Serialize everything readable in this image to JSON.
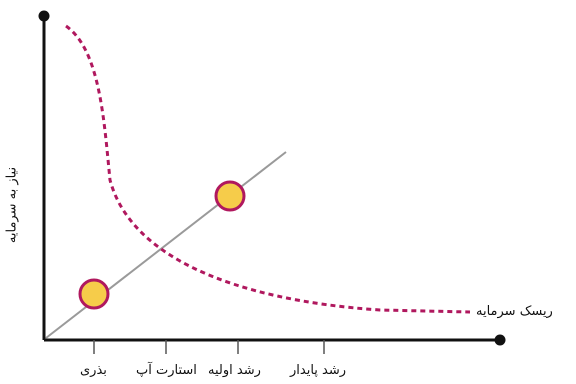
{
  "diagram": {
    "y_axis_label": "نیاز به سرمایه",
    "curve_label": "ریسک سرمایه",
    "stages": [
      "بذری",
      "استارت آپ",
      "رشد اولیه",
      "رشد پایدار"
    ],
    "colors": {
      "axis": "#111111",
      "curve": "#b0185e",
      "line": "#9a9a9a",
      "marker_fill": "#f6cc4a",
      "marker_stroke": "#b0185e"
    }
  }
}
